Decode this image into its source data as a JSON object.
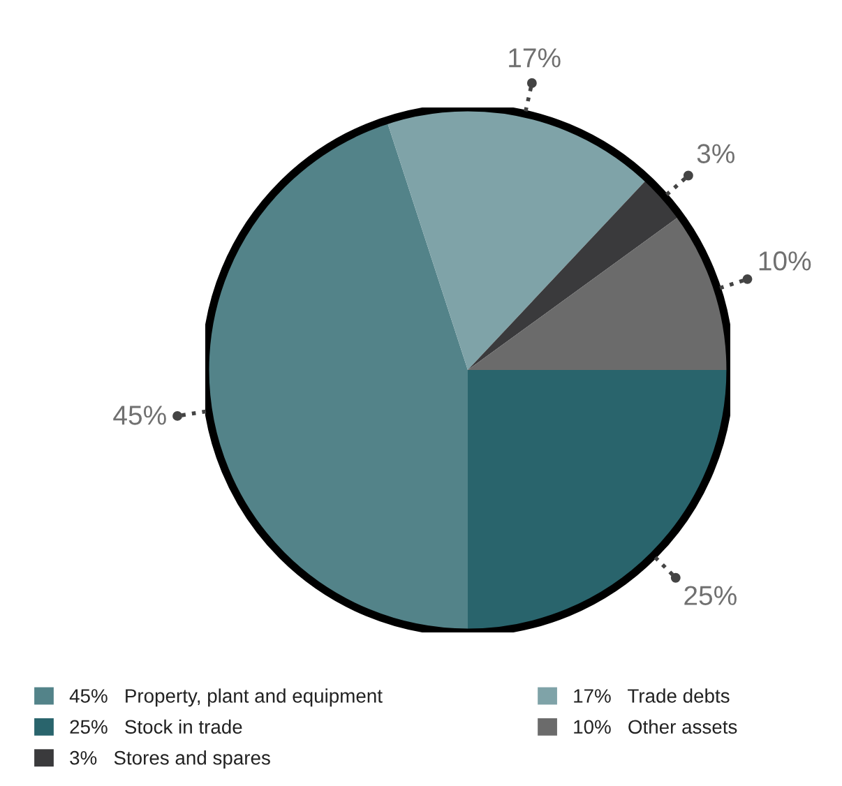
{
  "chart_data": {
    "type": "pie",
    "categories": [
      "Property, plant and equipment",
      "Trade debts",
      "Stores and spares",
      "Other assets",
      "Stock in trade"
    ],
    "values": [
      45,
      17,
      3,
      10,
      25
    ],
    "colors": [
      "#538389",
      "#7fa3a8",
      "#3a3a3c",
      "#6b6b6b",
      "#29646c"
    ],
    "value_labels": [
      "45%",
      "17%",
      "3%",
      "10%",
      "25%"
    ],
    "legend": "bottom"
  }
}
